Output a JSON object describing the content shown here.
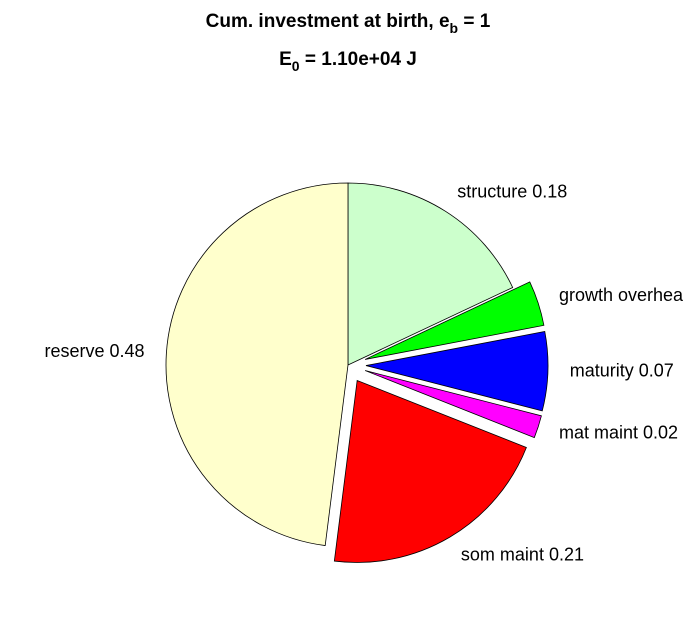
{
  "chart_data": {
    "type": "pie",
    "title": [
      "Cum. investment at birth, e",
      "b",
      " = 1"
    ],
    "subtitle": [
      "E",
      "0",
      " = 1.10e+04 J"
    ],
    "labels": [
      "structure 0.18",
      "growth overhea",
      "maturity 0.07",
      "mat maint 0.02",
      "som maint 0.21",
      "reserve 0.48"
    ],
    "values": [
      0.18,
      0.04,
      0.07,
      0.02,
      0.21,
      0.48
    ],
    "colors": [
      "#ccffcc",
      "#00ff00",
      "#0000ff",
      "#ff00ff",
      "#ff0000",
      "#ffffcc"
    ],
    "explode": [
      false,
      true,
      true,
      true,
      true,
      false
    ]
  }
}
